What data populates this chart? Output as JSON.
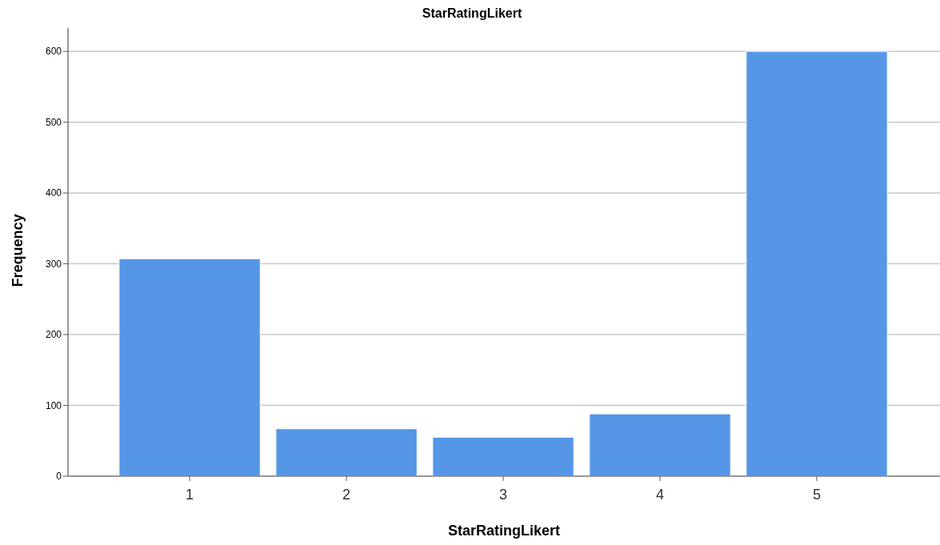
{
  "chart_data": {
    "type": "bar",
    "title": "StarRatingLikert",
    "xlabel": "StarRatingLikert",
    "ylabel": "Frequency",
    "categories": [
      "1",
      "2",
      "3",
      "4",
      "5"
    ],
    "values": [
      307,
      67,
      55,
      88,
      600
    ],
    "color": "#5596e6",
    "ylim": [
      0,
      633
    ],
    "yticks": [
      0,
      100,
      200,
      300,
      400,
      500,
      600
    ],
    "grid": "y"
  }
}
